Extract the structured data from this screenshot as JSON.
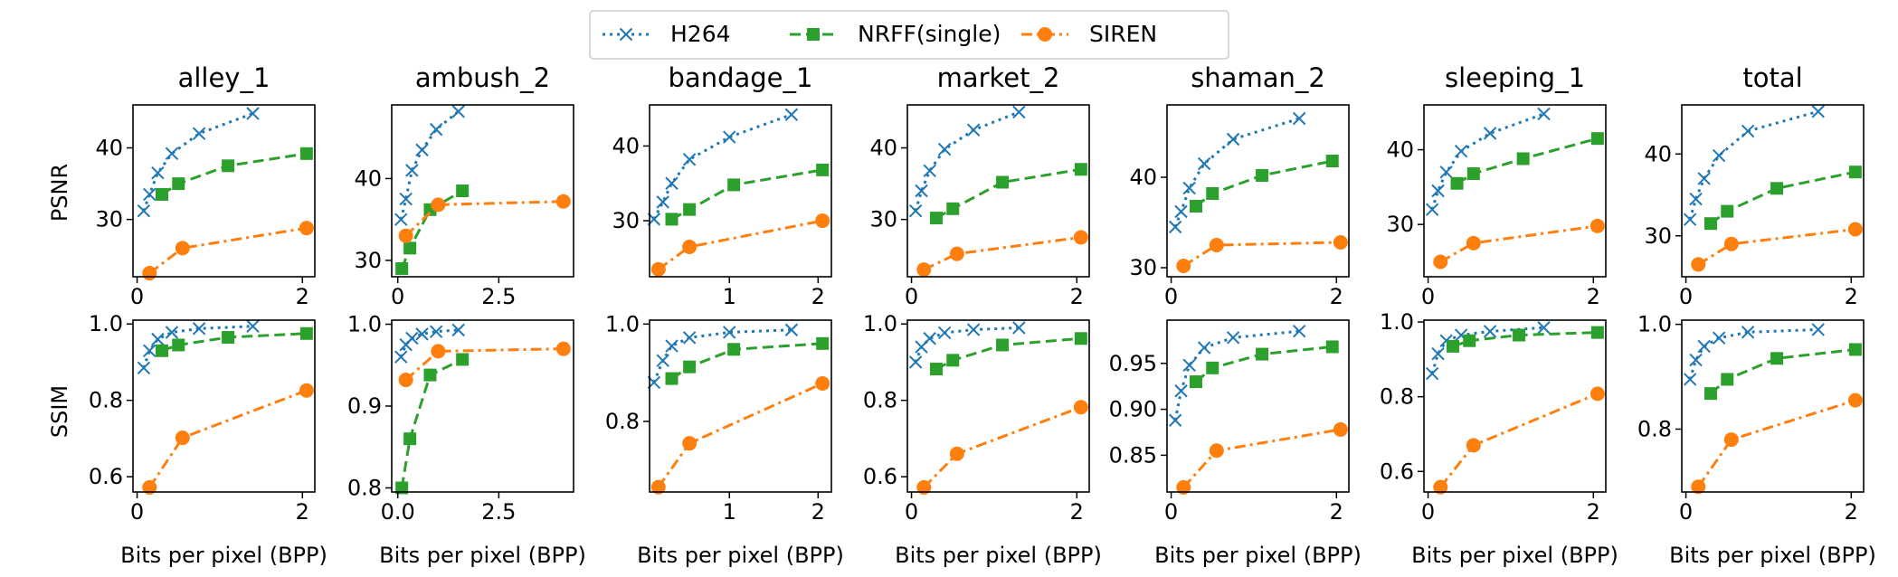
{
  "colors": {
    "H264": "#1f77b4",
    "NRFF(single)": "#2ca02c",
    "SIREN": "#ff7f0e",
    "axis": "#000000",
    "legend_border": "#cccccc"
  },
  "legend": [
    {
      "name": "H264",
      "marker": "x",
      "dash": "dotted"
    },
    {
      "name": "NRFF(single)",
      "marker": "square",
      "dash": "dashed"
    },
    {
      "name": "SIREN",
      "marker": "circle",
      "dash": "dashdot"
    }
  ],
  "row_labels": [
    "PSNR",
    "SSIM"
  ],
  "xlabel": "Bits per pixel (BPP)",
  "chart_data": [
    {
      "type": "line",
      "title": "alley_1",
      "xlim": [
        -0.05,
        2.15
      ],
      "psnr": {
        "ylim": [
          22,
          46
        ],
        "yticks": [
          30,
          40
        ],
        "series": [
          {
            "name": "H264",
            "x": [
              0.08,
              0.15,
              0.25,
              0.42,
              0.75,
              1.4
            ],
            "y": [
              31.2,
              33.5,
              36.5,
              39.2,
              42.0,
              44.8
            ]
          },
          {
            "name": "NRFF(single)",
            "x": [
              0.3,
              0.5,
              1.1,
              2.05
            ],
            "y": [
              33.5,
              35.0,
              37.5,
              39.2
            ]
          },
          {
            "name": "SIREN",
            "x": [
              0.15,
              0.55,
              2.05
            ],
            "y": [
              22.5,
              26.0,
              28.8
            ]
          }
        ]
      },
      "ssim": {
        "ylim": [
          0.56,
          1.01
        ],
        "yticks": [
          0.6,
          0.8,
          1.0
        ],
        "ytick_labels": [
          "0.6",
          "0.8",
          "1.0"
        ],
        "series": [
          {
            "name": "H264",
            "x": [
              0.08,
              0.15,
              0.25,
              0.42,
              0.75,
              1.4
            ],
            "y": [
              0.885,
              0.93,
              0.96,
              0.978,
              0.988,
              0.994
            ]
          },
          {
            "name": "NRFF(single)",
            "x": [
              0.3,
              0.5,
              1.1,
              2.05
            ],
            "y": [
              0.93,
              0.945,
              0.965,
              0.975
            ]
          },
          {
            "name": "SIREN",
            "x": [
              0.15,
              0.55,
              2.05
            ],
            "y": [
              0.572,
              0.702,
              0.826
            ]
          }
        ]
      },
      "xticks": [
        0,
        2
      ],
      "xtick_labels": [
        "0",
        "2"
      ],
      "psnr_xticks": [
        0,
        2
      ],
      "psnr_xtick_labels": [
        "0",
        "2"
      ]
    },
    {
      "type": "line",
      "title": "ambush_2",
      "xlim": [
        -0.15,
        4.35
      ],
      "psnr": {
        "ylim": [
          28,
          49
        ],
        "yticks": [
          30,
          40
        ],
        "series": [
          {
            "name": "H264",
            "x": [
              0.08,
              0.2,
              0.35,
              0.6,
              0.95,
              1.5
            ],
            "y": [
              35.0,
              37.5,
              41.0,
              43.5,
              46.0,
              48.2
            ]
          },
          {
            "name": "NRFF(single)",
            "x": [
              0.1,
              0.3,
              0.8,
              1.6
            ],
            "y": [
              29.0,
              31.5,
              36.2,
              38.5
            ]
          },
          {
            "name": "SIREN",
            "x": [
              0.2,
              1.0,
              4.1
            ],
            "y": [
              33.0,
              36.8,
              37.2
            ]
          }
        ]
      },
      "ssim": {
        "ylim": [
          0.795,
          1.005
        ],
        "yticks": [
          0.8,
          0.9,
          1.0
        ],
        "ytick_labels": [
          "0.8",
          "0.9",
          "1.0"
        ],
        "series": [
          {
            "name": "H264",
            "x": [
              0.08,
              0.2,
              0.35,
              0.6,
              0.95,
              1.5
            ],
            "y": [
              0.96,
              0.975,
              0.983,
              0.988,
              0.991,
              0.993
            ]
          },
          {
            "name": "NRFF(single)",
            "x": [
              0.1,
              0.3,
              0.8,
              1.6
            ],
            "y": [
              0.8,
              0.86,
              0.938,
              0.957
            ]
          },
          {
            "name": "SIREN",
            "x": [
              0.2,
              1.0,
              4.1
            ],
            "y": [
              0.932,
              0.967,
              0.97
            ]
          }
        ]
      },
      "xticks": [
        0,
        2.5
      ],
      "xtick_labels": [
        "0.0",
        "2.5"
      ],
      "psnr_xticks": [
        0,
        2.5
      ],
      "psnr_xtick_labels": [
        "0",
        "2.5"
      ]
    },
    {
      "type": "line",
      "title": "bandage_1",
      "xlim": [
        0.1,
        2.15
      ],
      "psnr": {
        "ylim": [
          22.5,
          45.5
        ],
        "yticks": [
          30,
          40
        ],
        "series": [
          {
            "name": "H264",
            "x": [
              0.15,
              0.25,
              0.35,
              0.55,
              1.0,
              1.7
            ],
            "y": [
              30.2,
              32.5,
              35.0,
              38.2,
              41.2,
              44.2
            ]
          },
          {
            "name": "NRFF(single)",
            "x": [
              0.35,
              0.55,
              1.05,
              2.05
            ],
            "y": [
              30.2,
              31.5,
              34.8,
              36.8
            ]
          },
          {
            "name": "SIREN",
            "x": [
              0.2,
              0.55,
              2.05
            ],
            "y": [
              23.5,
              26.5,
              30.0
            ]
          }
        ]
      },
      "ssim": {
        "ylim": [
          0.655,
          1.008
        ],
        "yticks": [
          0.8,
          1.0
        ],
        "ytick_labels": [
          "0.8",
          "1.0"
        ],
        "series": [
          {
            "name": "H264",
            "x": [
              0.15,
              0.25,
              0.35,
              0.55,
              1.0,
              1.7
            ],
            "y": [
              0.88,
              0.925,
              0.955,
              0.972,
              0.983,
              0.988
            ]
          },
          {
            "name": "NRFF(single)",
            "x": [
              0.35,
              0.55,
              1.05,
              2.05
            ],
            "y": [
              0.888,
              0.912,
              0.948,
              0.96
            ]
          },
          {
            "name": "SIREN",
            "x": [
              0.2,
              0.55,
              2.05
            ],
            "y": [
              0.665,
              0.755,
              0.878
            ]
          }
        ]
      },
      "xticks": [
        1,
        2
      ],
      "xtick_labels": [
        "1",
        "2"
      ],
      "psnr_xticks": [
        1,
        2
      ],
      "psnr_xtick_labels": [
        "1",
        "2"
      ]
    },
    {
      "type": "line",
      "title": "market_2",
      "xlim": [
        -0.05,
        2.15
      ],
      "psnr": {
        "ylim": [
          22,
          46
        ],
        "yticks": [
          30,
          40
        ],
        "series": [
          {
            "name": "H264",
            "x": [
              0.05,
              0.12,
              0.22,
              0.4,
              0.75,
              1.3
            ],
            "y": [
              31.2,
              34.0,
              36.8,
              39.8,
              42.5,
              45.0
            ]
          },
          {
            "name": "NRFF(single)",
            "x": [
              0.3,
              0.5,
              1.1,
              2.05
            ],
            "y": [
              30.2,
              31.5,
              35.2,
              37.0
            ]
          },
          {
            "name": "SIREN",
            "x": [
              0.15,
              0.55,
              2.05
            ],
            "y": [
              23.0,
              25.2,
              27.5
            ]
          }
        ]
      },
      "ssim": {
        "ylim": [
          0.56,
          1.01
        ],
        "yticks": [
          0.6,
          0.8,
          1.0
        ],
        "ytick_labels": [
          "0.6",
          "0.8",
          "1.0"
        ],
        "series": [
          {
            "name": "H264",
            "x": [
              0.05,
              0.12,
              0.22,
              0.4,
              0.75,
              1.3
            ],
            "y": [
              0.9,
              0.94,
              0.962,
              0.977,
              0.985,
              0.99
            ]
          },
          {
            "name": "NRFF(single)",
            "x": [
              0.3,
              0.5,
              1.1,
              2.05
            ],
            "y": [
              0.882,
              0.905,
              0.945,
              0.962
            ]
          },
          {
            "name": "SIREN",
            "x": [
              0.15,
              0.55,
              2.05
            ],
            "y": [
              0.572,
              0.66,
              0.782
            ]
          }
        ]
      },
      "xticks": [
        0,
        2
      ],
      "xtick_labels": [
        "0",
        "2"
      ],
      "psnr_xticks": [
        0,
        2
      ],
      "psnr_xtick_labels": [
        "0",
        "2"
      ]
    },
    {
      "type": "line",
      "title": "shaman_2",
      "xlim": [
        -0.05,
        2.15
      ],
      "psnr": {
        "ylim": [
          29,
          48
        ],
        "yticks": [
          30,
          40
        ],
        "series": [
          {
            "name": "H264",
            "x": [
              0.05,
              0.12,
              0.22,
              0.4,
              0.75,
              1.55
            ],
            "y": [
              34.5,
              36.2,
              38.8,
              41.5,
              44.2,
              46.5
            ]
          },
          {
            "name": "NRFF(single)",
            "x": [
              0.3,
              0.5,
              1.1,
              1.95
            ],
            "y": [
              36.8,
              38.2,
              40.2,
              41.8
            ]
          },
          {
            "name": "SIREN",
            "x": [
              0.15,
              0.55,
              2.05
            ],
            "y": [
              30.2,
              32.5,
              32.8
            ]
          }
        ]
      },
      "ssim": {
        "ylim": [
          0.81,
          0.997
        ],
        "yticks": [
          0.85,
          0.9,
          0.95
        ],
        "ytick_labels": [
          "0.85",
          "0.90",
          "0.95"
        ],
        "series": [
          {
            "name": "H264",
            "x": [
              0.05,
              0.12,
              0.22,
              0.4,
              0.75,
              1.55
            ],
            "y": [
              0.888,
              0.92,
              0.948,
              0.967,
              0.978,
              0.985
            ]
          },
          {
            "name": "NRFF(single)",
            "x": [
              0.3,
              0.5,
              1.1,
              1.95
            ],
            "y": [
              0.93,
              0.945,
              0.96,
              0.968
            ]
          },
          {
            "name": "SIREN",
            "x": [
              0.15,
              0.55,
              2.05
            ],
            "y": [
              0.815,
              0.855,
              0.878
            ]
          }
        ]
      },
      "xticks": [
        0,
        2
      ],
      "xtick_labels": [
        "0",
        "2"
      ],
      "psnr_xticks": [
        0,
        2
      ],
      "psnr_xtick_labels": [
        "0",
        "2"
      ]
    },
    {
      "type": "line",
      "title": "sleeping_1",
      "xlim": [
        -0.05,
        2.15
      ],
      "psnr": {
        "ylim": [
          23,
          46
        ],
        "yticks": [
          30,
          40
        ],
        "series": [
          {
            "name": "H264",
            "x": [
              0.05,
              0.12,
              0.22,
              0.4,
              0.75,
              1.4
            ],
            "y": [
              32.0,
              34.5,
              37.0,
              39.8,
              42.2,
              44.8
            ]
          },
          {
            "name": "NRFF(single)",
            "x": [
              0.35,
              0.55,
              1.15,
              2.05
            ],
            "y": [
              35.5,
              36.8,
              38.8,
              41.5
            ]
          },
          {
            "name": "SIREN",
            "x": [
              0.15,
              0.55,
              2.05
            ],
            "y": [
              25.0,
              27.5,
              29.8
            ]
          }
        ]
      },
      "ssim": {
        "ylim": [
          0.545,
          1.005
        ],
        "yticks": [
          0.6,
          0.8,
          1.0
        ],
        "ytick_labels": [
          "0.6",
          "0.8",
          "1.0"
        ],
        "series": [
          {
            "name": "H264",
            "x": [
              0.05,
              0.12,
              0.22,
              0.4,
              0.75,
              1.4
            ],
            "y": [
              0.862,
              0.915,
              0.95,
              0.965,
              0.975,
              0.985
            ]
          },
          {
            "name": "NRFF(single)",
            "x": [
              0.3,
              0.5,
              1.1,
              2.05
            ],
            "y": [
              0.935,
              0.95,
              0.965,
              0.972
            ]
          },
          {
            "name": "SIREN",
            "x": [
              0.15,
              0.55,
              2.05
            ],
            "y": [
              0.558,
              0.67,
              0.808
            ]
          }
        ]
      },
      "xticks": [
        0,
        2
      ],
      "xtick_labels": [
        "0",
        "2"
      ],
      "psnr_xticks": [
        0,
        2
      ],
      "psnr_xtick_labels": [
        "0",
        "2"
      ]
    },
    {
      "type": "line",
      "title": "total",
      "xlim": [
        -0.05,
        2.15
      ],
      "psnr": {
        "ylim": [
          25,
          46
        ],
        "yticks": [
          30,
          40
        ],
        "series": [
          {
            "name": "H264",
            "x": [
              0.05,
              0.12,
              0.22,
              0.4,
              0.75,
              1.6
            ],
            "y": [
              32.0,
              34.5,
              37.0,
              39.8,
              42.8,
              45.2
            ]
          },
          {
            "name": "NRFF(single)",
            "x": [
              0.3,
              0.5,
              1.1,
              2.05
            ],
            "y": [
              31.5,
              33.0,
              35.8,
              37.8
            ]
          },
          {
            "name": "SIREN",
            "x": [
              0.15,
              0.55,
              2.05
            ],
            "y": [
              26.5,
              29.0,
              30.8
            ]
          }
        ]
      },
      "ssim": {
        "ylim": [
          0.68,
          1.008
        ],
        "yticks": [
          0.8,
          1.0
        ],
        "ytick_labels": [
          "0.8",
          "1.0"
        ],
        "series": [
          {
            "name": "H264",
            "x": [
              0.05,
              0.12,
              0.22,
              0.4,
              0.75,
              1.6
            ],
            "y": [
              0.895,
              0.932,
              0.958,
              0.974,
              0.985,
              0.99
            ]
          },
          {
            "name": "NRFF(single)",
            "x": [
              0.3,
              0.5,
              1.1,
              2.05
            ],
            "y": [
              0.868,
              0.895,
              0.935,
              0.952
            ]
          },
          {
            "name": "SIREN",
            "x": [
              0.15,
              0.55,
              2.05
            ],
            "y": [
              0.69,
              0.78,
              0.855
            ]
          }
        ]
      },
      "xticks": [
        0,
        2
      ],
      "xtick_labels": [
        "0",
        "2"
      ],
      "psnr_xticks": [
        0,
        2
      ],
      "psnr_xtick_labels": [
        "0",
        "2"
      ]
    }
  ]
}
